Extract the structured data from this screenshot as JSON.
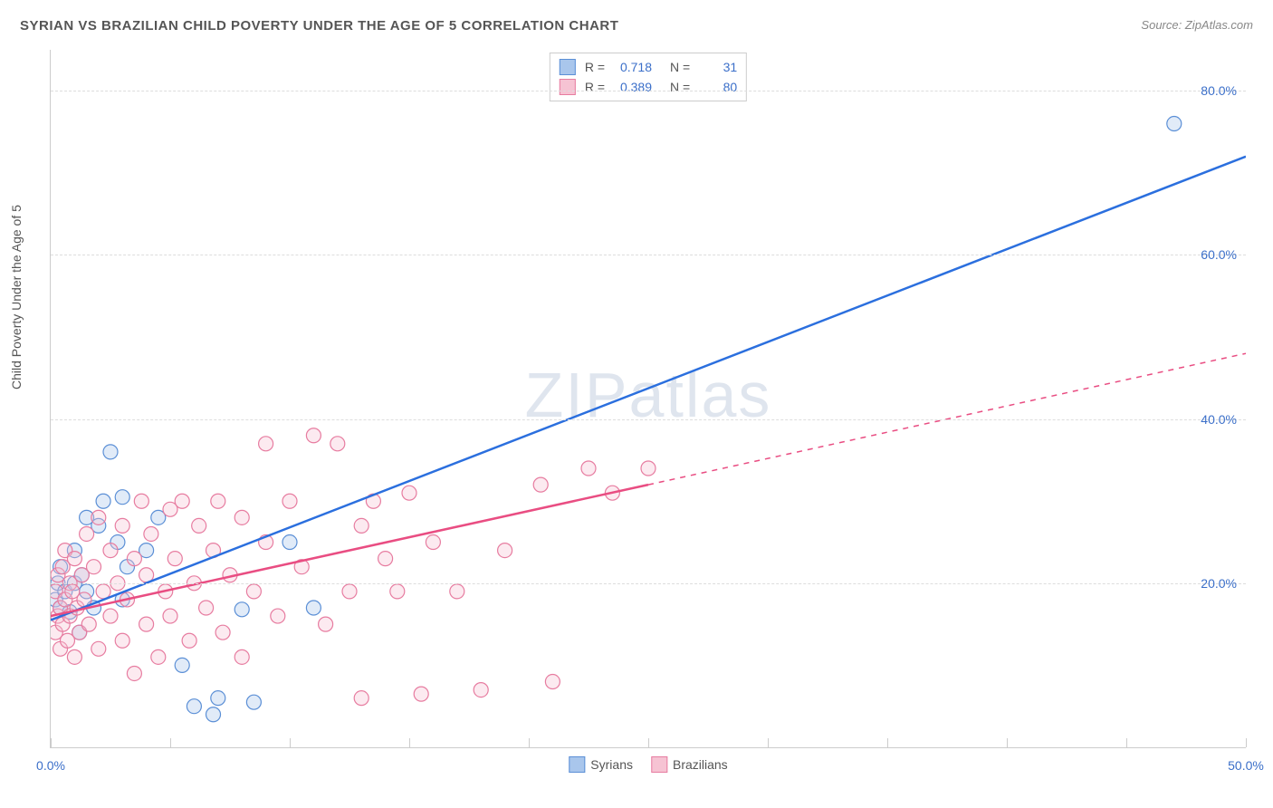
{
  "title": "SYRIAN VS BRAZILIAN CHILD POVERTY UNDER THE AGE OF 5 CORRELATION CHART",
  "source_label": "Source:",
  "source_name": "ZipAtlas.com",
  "ylabel": "Child Poverty Under the Age of 5",
  "watermark": "ZIPatlas",
  "chart": {
    "xlim": [
      0,
      50
    ],
    "ylim": [
      0,
      85
    ],
    "xtick_step": 5,
    "ytick_step": 20,
    "xtick_labels": {
      "0": "0.0%",
      "50": "50.0%"
    },
    "ytick_labels": {
      "20": "20.0%",
      "40": "40.0%",
      "60": "60.0%",
      "80": "80.0%"
    },
    "point_radius": 8,
    "grid_color": "#dddddd",
    "axis_color": "#cccccc",
    "series": [
      {
        "name": "Syrians",
        "key": "syrians",
        "color_stroke": "#5b8fd6",
        "color_fill": "#a9c6ec",
        "line_color": "#2b6fde",
        "r_value": "0.718",
        "n_value": "31",
        "trend": {
          "x1": 0,
          "y1": 15.5,
          "x2": 50,
          "y2": 72,
          "solid_until_x": 50
        },
        "points": [
          [
            0.2,
            18
          ],
          [
            0.3,
            20
          ],
          [
            0.4,
            17
          ],
          [
            0.4,
            22
          ],
          [
            0.6,
            19
          ],
          [
            0.8,
            16.5
          ],
          [
            1.0,
            20
          ],
          [
            1.0,
            24
          ],
          [
            1.2,
            14
          ],
          [
            1.3,
            21
          ],
          [
            1.5,
            28
          ],
          [
            1.5,
            19
          ],
          [
            1.8,
            17
          ],
          [
            2.0,
            27
          ],
          [
            2.2,
            30
          ],
          [
            2.5,
            36
          ],
          [
            2.8,
            25
          ],
          [
            3.0,
            18
          ],
          [
            3.0,
            30.5
          ],
          [
            3.2,
            22
          ],
          [
            4.0,
            24
          ],
          [
            4.5,
            28
          ],
          [
            5.5,
            10
          ],
          [
            6.0,
            5
          ],
          [
            6.8,
            4
          ],
          [
            7.0,
            6
          ],
          [
            8.0,
            16.8
          ],
          [
            8.5,
            5.5
          ],
          [
            10.0,
            25
          ],
          [
            11.0,
            17
          ],
          [
            47.0,
            76
          ]
        ]
      },
      {
        "name": "Brazilians",
        "key": "brazilians",
        "color_stroke": "#e77ca0",
        "color_fill": "#f6c3d3",
        "line_color": "#e94d82",
        "r_value": "0.389",
        "n_value": "80",
        "trend": {
          "x1": 0,
          "y1": 16,
          "x2": 50,
          "y2": 48,
          "solid_until_x": 25
        },
        "points": [
          [
            0.2,
            14
          ],
          [
            0.2,
            19
          ],
          [
            0.3,
            16
          ],
          [
            0.3,
            21
          ],
          [
            0.4,
            12
          ],
          [
            0.4,
            17
          ],
          [
            0.5,
            22
          ],
          [
            0.5,
            15
          ],
          [
            0.6,
            18
          ],
          [
            0.6,
            24
          ],
          [
            0.7,
            13
          ],
          [
            0.8,
            20
          ],
          [
            0.8,
            16
          ],
          [
            0.9,
            19
          ],
          [
            1.0,
            11
          ],
          [
            1.0,
            23
          ],
          [
            1.1,
            17
          ],
          [
            1.2,
            14
          ],
          [
            1.3,
            21
          ],
          [
            1.4,
            18
          ],
          [
            1.5,
            26
          ],
          [
            1.6,
            15
          ],
          [
            1.8,
            22
          ],
          [
            2.0,
            12
          ],
          [
            2.0,
            28
          ],
          [
            2.2,
            19
          ],
          [
            2.5,
            16
          ],
          [
            2.5,
            24
          ],
          [
            2.8,
            20
          ],
          [
            3.0,
            13
          ],
          [
            3.0,
            27
          ],
          [
            3.2,
            18
          ],
          [
            3.5,
            23
          ],
          [
            3.5,
            9
          ],
          [
            3.8,
            30
          ],
          [
            4.0,
            15
          ],
          [
            4.0,
            21
          ],
          [
            4.2,
            26
          ],
          [
            4.5,
            11
          ],
          [
            4.8,
            19
          ],
          [
            5.0,
            29
          ],
          [
            5.0,
            16
          ],
          [
            5.2,
            23
          ],
          [
            5.5,
            30
          ],
          [
            5.8,
            13
          ],
          [
            6.0,
            20
          ],
          [
            6.2,
            27
          ],
          [
            6.5,
            17
          ],
          [
            6.8,
            24
          ],
          [
            7.0,
            30
          ],
          [
            7.2,
            14
          ],
          [
            7.5,
            21
          ],
          [
            8.0,
            28
          ],
          [
            8.0,
            11
          ],
          [
            8.5,
            19
          ],
          [
            9.0,
            25
          ],
          [
            9.0,
            37
          ],
          [
            9.5,
            16
          ],
          [
            10.0,
            30
          ],
          [
            10.5,
            22
          ],
          [
            11.0,
            38
          ],
          [
            11.5,
            15
          ],
          [
            12.0,
            37
          ],
          [
            12.5,
            19
          ],
          [
            13.0,
            27
          ],
          [
            13.5,
            30
          ],
          [
            13.0,
            6
          ],
          [
            14.0,
            23
          ],
          [
            14.5,
            19
          ],
          [
            15.0,
            31
          ],
          [
            15.5,
            6.5
          ],
          [
            16.0,
            25
          ],
          [
            17.0,
            19
          ],
          [
            18.0,
            7
          ],
          [
            19.0,
            24
          ],
          [
            20.5,
            32
          ],
          [
            21.0,
            8
          ],
          [
            22.5,
            34
          ],
          [
            23.5,
            31
          ],
          [
            25.0,
            34
          ]
        ]
      }
    ]
  },
  "legend_bottom": [
    {
      "label": "Syrians",
      "key": "syrians"
    },
    {
      "label": "Brazilians",
      "key": "brazilians"
    }
  ]
}
